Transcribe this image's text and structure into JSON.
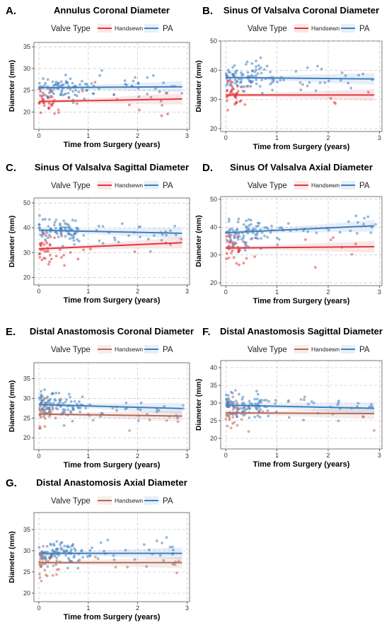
{
  "legend": {
    "title": "Valve Type",
    "handsewn_label": "Handsewn",
    "pa_label": "PA"
  },
  "colors": {
    "handsewn_red": "#e0363e",
    "handsewn_brown": "#b5695a",
    "pa_blue": "#3f7fc0"
  },
  "chart_data": [
    {
      "type": "scatter",
      "panel": "A.",
      "title": "Annulus Coronal Diameter",
      "xlabel": "Time from Surgery (years)",
      "ylabel": "Diameter (mm)",
      "xlim": [
        -0.1,
        3.05
      ],
      "ylim": [
        16,
        36
      ],
      "xticks": [
        0,
        1,
        2,
        3
      ],
      "yticks": [
        20,
        25,
        30,
        35
      ],
      "handsewn_color": "red",
      "grid": true,
      "legend_position": "top",
      "series": [
        {
          "name": "Handsewn",
          "trend": [
            [
              0,
              22.4
            ],
            [
              2.9,
              23.0
            ]
          ]
        },
        {
          "name": "PA",
          "trend": [
            [
              0,
              25.6
            ],
            [
              2.9,
              25.8
            ]
          ]
        }
      ]
    },
    {
      "type": "scatter",
      "panel": "B.",
      "title": "Sinus Of Valsalva Coronal Diameter",
      "xlabel": "Time from Surgery (years)",
      "ylabel": "Diameter (mm)",
      "xlim": [
        -0.1,
        3.05
      ],
      "ylim": [
        19,
        50
      ],
      "xticks": [
        0,
        1,
        2,
        3
      ],
      "yticks": [
        20,
        30,
        40,
        50
      ],
      "handsewn_color": "red",
      "grid": true,
      "legend_position": "top",
      "series": [
        {
          "name": "Handsewn",
          "trend": [
            [
              0,
              31.5
            ],
            [
              2.9,
              31.5
            ]
          ]
        },
        {
          "name": "PA",
          "trend": [
            [
              0,
              37.5
            ],
            [
              2.9,
              37.0
            ]
          ]
        }
      ]
    },
    {
      "type": "scatter",
      "panel": "C.",
      "title": "Sinus Of Valsalva Sagittal Diameter",
      "xlabel": "Time from Surgery (years)",
      "ylabel": "Diameter (mm)",
      "xlim": [
        -0.1,
        3.05
      ],
      "ylim": [
        17,
        52
      ],
      "xticks": [
        0,
        1,
        2,
        3
      ],
      "yticks": [
        20,
        30,
        40,
        50
      ],
      "handsewn_color": "red",
      "grid": true,
      "legend_position": "top",
      "series": [
        {
          "name": "Handsewn",
          "trend": [
            [
              0,
              31.5
            ],
            [
              2.9,
              34.0
            ]
          ]
        },
        {
          "name": "PA",
          "trend": [
            [
              0,
              39.0
            ],
            [
              2.9,
              37.8
            ]
          ]
        }
      ]
    },
    {
      "type": "scatter",
      "panel": "D.",
      "title": "Sinus Of Valsalva Axial Diameter",
      "xlabel": "Time from Surgery (years)",
      "ylabel": "Diameter (mm)",
      "xlim": [
        -0.1,
        3.05
      ],
      "ylim": [
        19,
        51
      ],
      "xticks": [
        0,
        1,
        2,
        3
      ],
      "yticks": [
        20,
        30,
        40,
        50
      ],
      "handsewn_color": "red",
      "grid": true,
      "legend_position": "top",
      "series": [
        {
          "name": "Handsewn",
          "trend": [
            [
              0,
              32.5
            ],
            [
              2.9,
              33.0
            ]
          ]
        },
        {
          "name": "PA",
          "trend": [
            [
              0,
              38.0
            ],
            [
              2.9,
              40.5
            ]
          ]
        }
      ]
    },
    {
      "type": "scatter",
      "panel": "E.",
      "title": "Distal Anastomosis Coronal Diameter",
      "xlabel": "Time from Surgery (years)",
      "ylabel": "Diameter (mm)",
      "xlim": [
        -0.1,
        3.05
      ],
      "ylim": [
        17,
        39
      ],
      "xticks": [
        0,
        1,
        2,
        3
      ],
      "yticks": [
        20,
        25,
        30,
        35
      ],
      "handsewn_color": "brown",
      "grid": true,
      "legend_position": "top",
      "series": [
        {
          "name": "Handsewn",
          "trend": [
            [
              0,
              26.0
            ],
            [
              2.9,
              25.5
            ]
          ]
        },
        {
          "name": "PA",
          "trend": [
            [
              0,
              28.4
            ],
            [
              2.9,
              27.4
            ]
          ]
        }
      ]
    },
    {
      "type": "scatter",
      "panel": "F.",
      "title": "Distal Anastomosis Sagittal Diameter",
      "xlabel": "Time from Surgery (years)",
      "ylabel": "Diameter (mm)",
      "xlim": [
        -0.1,
        3.05
      ],
      "ylim": [
        17,
        42
      ],
      "xticks": [
        0,
        1,
        2,
        3
      ],
      "yticks": [
        20,
        25,
        30,
        35,
        40
      ],
      "handsewn_color": "brown",
      "grid": true,
      "legend_position": "top",
      "series": [
        {
          "name": "Handsewn",
          "trend": [
            [
              0,
              27.2
            ],
            [
              2.9,
              27.0
            ]
          ]
        },
        {
          "name": "PA",
          "trend": [
            [
              0,
              29.4
            ],
            [
              2.9,
              28.5
            ]
          ]
        }
      ]
    },
    {
      "type": "scatter",
      "panel": "G.",
      "title": "Distal Anastomosis Axial Diameter",
      "xlabel": "Time from Surgery (years)",
      "ylabel": "Diameter (mm)",
      "xlim": [
        -0.1,
        3.05
      ],
      "ylim": [
        18,
        39
      ],
      "xticks": [
        0,
        1,
        2,
        3
      ],
      "yticks": [
        20,
        25,
        30,
        35
      ],
      "handsewn_color": "brown",
      "grid": true,
      "legend_position": "top",
      "series": [
        {
          "name": "Handsewn",
          "trend": [
            [
              0,
              27.2
            ],
            [
              2.9,
              27.2
            ]
          ]
        },
        {
          "name": "PA",
          "trend": [
            [
              0,
              29.4
            ],
            [
              2.9,
              29.4
            ]
          ]
        }
      ]
    }
  ]
}
